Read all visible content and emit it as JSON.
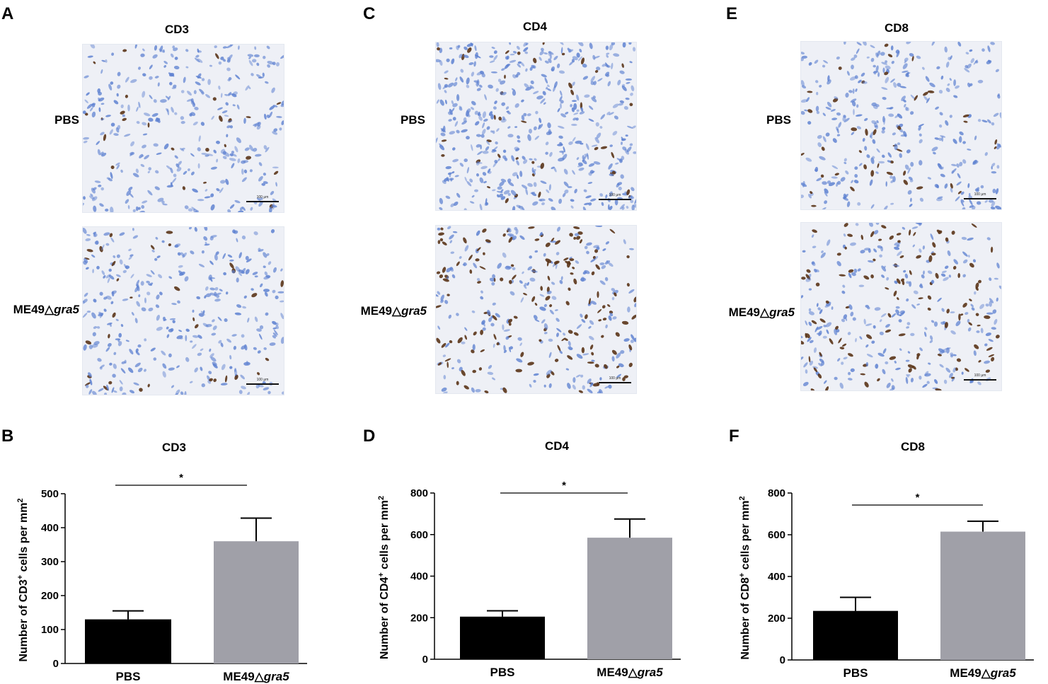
{
  "panels_top": [
    {
      "letter": "A",
      "title": "CD3",
      "row_labels": [
        "PBS",
        "ME49",
        "gra5"
      ],
      "scale": [
        "100 μm",
        "100 μm"
      ],
      "stain_density": [
        0.05,
        0.12
      ]
    },
    {
      "letter": "C",
      "title": "CD4",
      "row_labels": [
        "PBS",
        "ME49",
        "gra5"
      ],
      "scale": [
        "100 μm",
        "100 μm"
      ],
      "stain_density": [
        0.08,
        0.35
      ]
    },
    {
      "letter": "E",
      "title": "CD8",
      "row_labels": [
        "PBS",
        "ME49",
        "gra5"
      ],
      "scale": [
        "100 μm",
        "100 μm"
      ],
      "stain_density": [
        0.1,
        0.3
      ]
    }
  ],
  "labels": {
    "pbs": "PBS",
    "me49": "ME49",
    "delta": "△",
    "gra5": "gra5"
  },
  "colors": {
    "pbs_bar": "#000000",
    "me49_bar": "#a0a0a8",
    "nucleus": "#5b7fd0",
    "stain": "#5a3418",
    "tissue_bg": "#eef0f6"
  },
  "chart_data": [
    {
      "letter": "B",
      "type": "bar",
      "title": "CD3",
      "categories": [
        "PBS",
        "ME49△gra5"
      ],
      "values": [
        130,
        360
      ],
      "errors": [
        25,
        68
      ],
      "ylabel_parts": [
        "Number of CD3",
        "+",
        " cells per mm",
        "2"
      ],
      "ylim": [
        0,
        500
      ],
      "yticks": [
        0,
        100,
        200,
        300,
        400,
        500
      ],
      "significance": "*"
    },
    {
      "letter": "D",
      "type": "bar",
      "title": "CD4",
      "categories": [
        "PBS",
        "ME49△gra5"
      ],
      "values": [
        205,
        585
      ],
      "errors": [
        28,
        90
      ],
      "ylabel_parts": [
        "Number of CD4",
        "+",
        " cells per mm",
        "2"
      ],
      "ylim": [
        0,
        800
      ],
      "yticks": [
        0,
        200,
        400,
        600,
        800
      ],
      "significance": "*"
    },
    {
      "letter": "F",
      "type": "bar",
      "title": "CD8",
      "categories": [
        "PBS",
        "ME49△gra5"
      ],
      "values": [
        235,
        615
      ],
      "errors": [
        65,
        50
      ],
      "ylabel_parts": [
        "Number of CD8",
        "+",
        " cells per mm",
        "2"
      ],
      "ylim": [
        0,
        800
      ],
      "yticks": [
        0,
        200,
        400,
        600,
        800
      ],
      "significance": "*"
    }
  ]
}
